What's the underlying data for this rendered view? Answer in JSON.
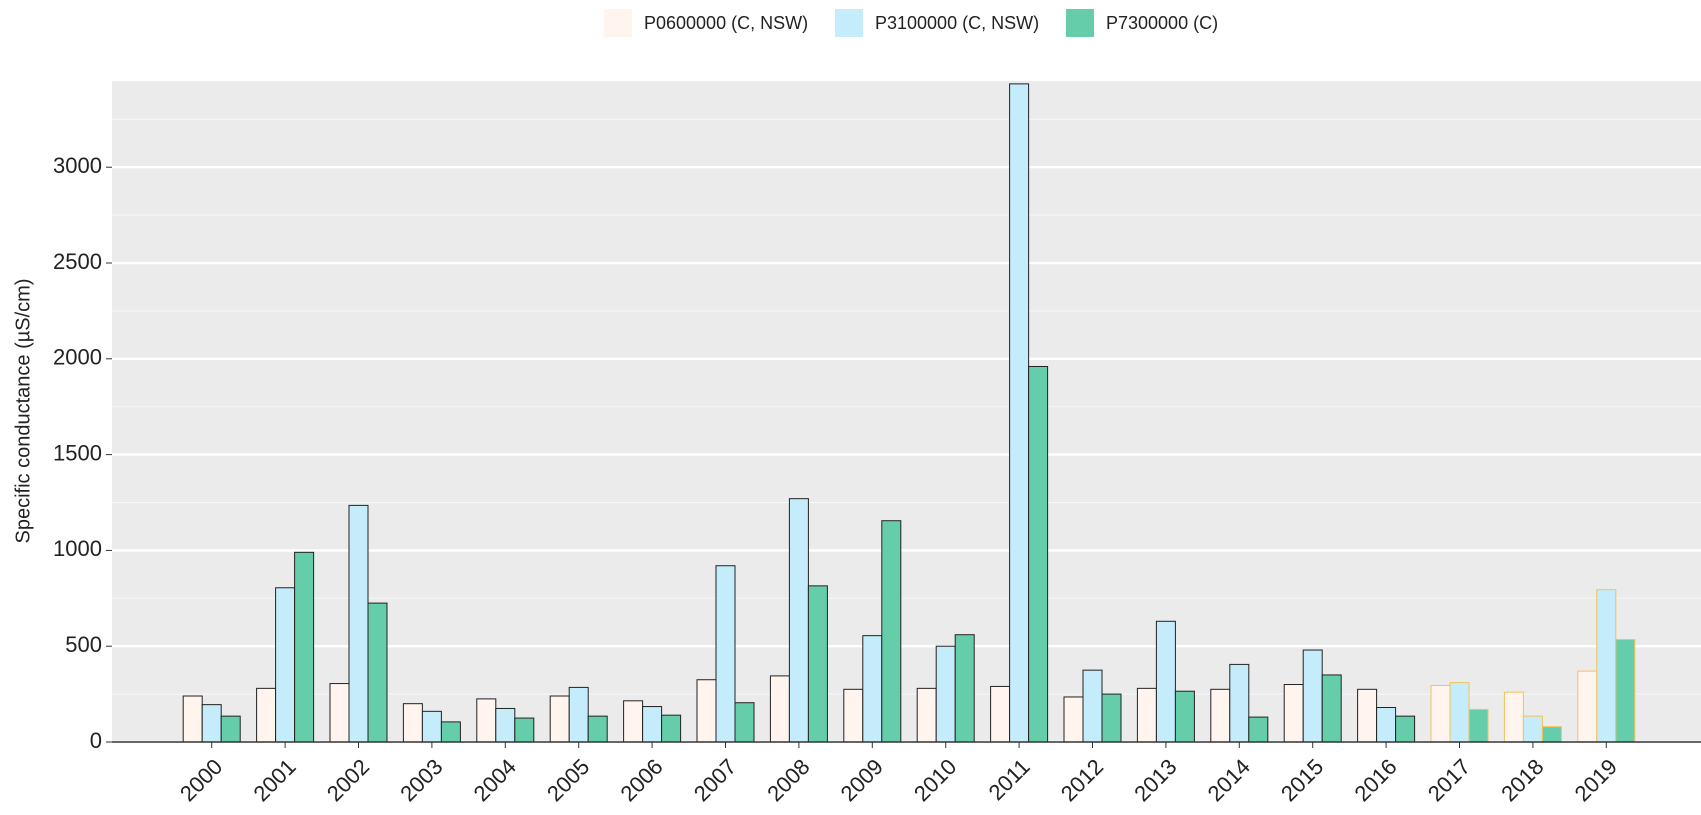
{
  "chart_data": {
    "type": "bar",
    "y_label": "Specific conductance (µS/cm)",
    "categories": [
      "2000",
      "2001",
      "2002",
      "2003",
      "2004",
      "2005",
      "2006",
      "2007",
      "2008",
      "2009",
      "2010",
      "2011",
      "2012",
      "2013",
      "2014",
      "2015",
      "2016",
      "2017",
      "2018",
      "2019"
    ],
    "series": [
      {
        "name": "P0600000 (C, NSW)",
        "color": "#fff4ee",
        "values": [
          240,
          280,
          305,
          200,
          225,
          240,
          215,
          325,
          345,
          275,
          280,
          290,
          235,
          280,
          275,
          300,
          275,
          295,
          260,
          370
        ]
      },
      {
        "name": "P3100000 (C, NSW)",
        "color": "#c4ecfb",
        "values": [
          195,
          805,
          1235,
          160,
          175,
          285,
          185,
          920,
          1270,
          555,
          500,
          3435,
          375,
          630,
          405,
          480,
          180,
          310,
          135,
          795
        ]
      },
      {
        "name": "P7300000 (C)",
        "color": "#66cdaa",
        "values": [
          135,
          990,
          725,
          105,
          125,
          135,
          140,
          205,
          815,
          1155,
          560,
          1960,
          250,
          265,
          130,
          350,
          135,
          170,
          80,
          535
        ]
      }
    ],
    "outline_colors": [
      "#222",
      "#222",
      "#222",
      "#222",
      "#222",
      "#222",
      "#222",
      "#222",
      "#222",
      "#222",
      "#222",
      "#222",
      "#222",
      "#222",
      "#222",
      "#222",
      "#222",
      "#f2c25a",
      "#f2c25a",
      "#f2c25a"
    ],
    "ylim": [
      0,
      3450
    ],
    "yticks": [
      0,
      500,
      1000,
      1500,
      2000,
      2500,
      3000
    ],
    "minor_yticks": [
      250,
      750,
      1250,
      1750,
      2250,
      2750,
      3250
    ],
    "grid": true,
    "legend_position": "top"
  }
}
